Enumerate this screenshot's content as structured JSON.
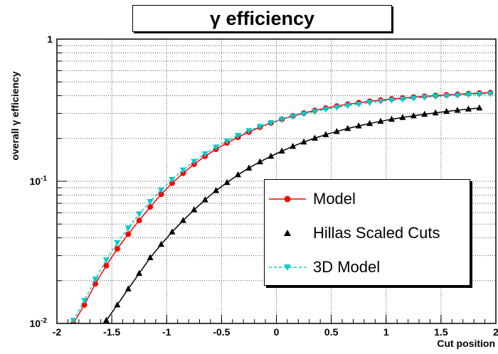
{
  "chart_data": {
    "type": "line",
    "title": "γ efficiency",
    "xlabel": "Cut position",
    "ylabel": "overall γ efficiency",
    "xlim": [
      -2,
      2
    ],
    "ylim": [
      0.01,
      1
    ],
    "yscale": "log",
    "grid": "horizontal dotted",
    "legend_position": "bottom-right",
    "xticks": [
      "-2",
      "-1.5",
      "-1",
      "-0.5",
      "0",
      "0.5",
      "1",
      "1.5",
      "2"
    ],
    "yticks": [
      {
        "value": 0.01,
        "label_base": "10",
        "label_exp": "-2"
      },
      {
        "value": 0.1,
        "label_base": "10",
        "label_exp": "-1"
      },
      {
        "value": 1,
        "label_base": "1",
        "label_exp": ""
      }
    ],
    "series": [
      {
        "name": "Model",
        "color": "#ff0000",
        "marker": "circle",
        "line": "solid",
        "x": [
          -1.85,
          -1.75,
          -1.65,
          -1.55,
          -1.45,
          -1.35,
          -1.25,
          -1.15,
          -1.05,
          -0.95,
          -0.85,
          -0.75,
          -0.65,
          -0.55,
          -0.45,
          -0.35,
          -0.25,
          -0.15,
          -0.05,
          0.05,
          0.15,
          0.25,
          0.35,
          0.45,
          0.55,
          0.65,
          0.75,
          0.85,
          0.95,
          1.05,
          1.15,
          1.25,
          1.35,
          1.45,
          1.55,
          1.65,
          1.75,
          1.85,
          1.95
        ],
        "y": [
          0.01,
          0.0135,
          0.019,
          0.0255,
          0.0335,
          0.0425,
          0.053,
          0.066,
          0.081,
          0.097,
          0.114,
          0.132,
          0.15,
          0.168,
          0.186,
          0.204,
          0.222,
          0.24,
          0.257,
          0.273,
          0.288,
          0.302,
          0.315,
          0.327,
          0.338,
          0.348,
          0.357,
          0.365,
          0.372,
          0.379,
          0.385,
          0.391,
          0.396,
          0.401,
          0.405,
          0.409,
          0.413,
          0.417,
          0.42
        ]
      },
      {
        "name": "Hillas Scaled Cuts",
        "color": "#000000",
        "marker": "triangle",
        "line": "solid",
        "x": [
          -1.65,
          -1.55,
          -1.45,
          -1.35,
          -1.25,
          -1.15,
          -1.05,
          -0.95,
          -0.85,
          -0.75,
          -0.65,
          -0.55,
          -0.45,
          -0.35,
          -0.25,
          -0.15,
          -0.05,
          0.05,
          0.15,
          0.25,
          0.35,
          0.45,
          0.55,
          0.65,
          0.75,
          0.85,
          0.95,
          1.05,
          1.15,
          1.25,
          1.35,
          1.45,
          1.55,
          1.65,
          1.75,
          1.85
        ],
        "y": [
          0.008,
          0.0105,
          0.0135,
          0.0175,
          0.0225,
          0.029,
          0.036,
          0.044,
          0.053,
          0.063,
          0.074,
          0.086,
          0.098,
          0.111,
          0.124,
          0.137,
          0.15,
          0.163,
          0.176,
          0.189,
          0.201,
          0.213,
          0.224,
          0.235,
          0.245,
          0.255,
          0.264,
          0.273,
          0.281,
          0.289,
          0.296,
          0.303,
          0.31,
          0.316,
          0.322,
          0.328
        ]
      },
      {
        "name": "3D Model",
        "color": "#00cccc",
        "marker": "triangle-down",
        "line": "dashed",
        "x": [
          -1.85,
          -1.75,
          -1.65,
          -1.55,
          -1.45,
          -1.35,
          -1.25,
          -1.15,
          -1.05,
          -0.95,
          -0.85,
          -0.75,
          -0.65,
          -0.55,
          -0.45,
          -0.35,
          -0.25,
          -0.15,
          -0.05,
          0.05,
          0.15,
          0.25,
          0.35,
          0.45,
          0.55,
          0.65,
          0.75,
          0.85,
          0.95,
          1.05,
          1.15,
          1.25,
          1.35,
          1.45,
          1.55,
          1.65,
          1.75,
          1.85,
          1.95
        ],
        "y": [
          0.0105,
          0.0145,
          0.0205,
          0.028,
          0.037,
          0.047,
          0.059,
          0.072,
          0.087,
          0.103,
          0.12,
          0.138,
          0.156,
          0.174,
          0.192,
          0.21,
          0.227,
          0.243,
          0.258,
          0.272,
          0.286,
          0.298,
          0.31,
          0.321,
          0.331,
          0.341,
          0.349,
          0.357,
          0.365,
          0.372,
          0.378,
          0.384,
          0.39,
          0.395,
          0.399,
          0.403,
          0.407,
          0.41,
          0.413
        ]
      }
    ]
  }
}
